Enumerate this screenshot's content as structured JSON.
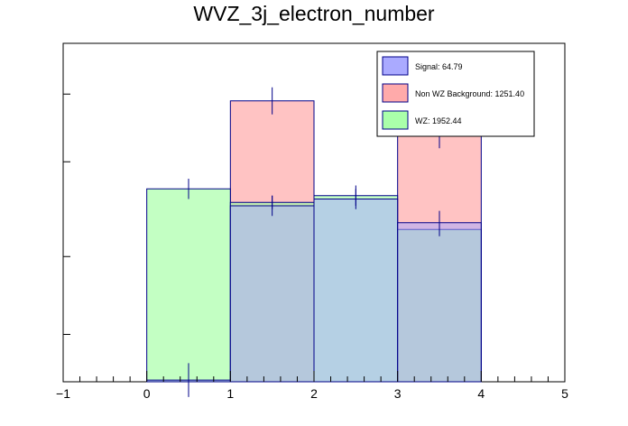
{
  "chart_data": {
    "type": "bar",
    "stacked_overlay": true,
    "title": "WVZ_3j_electron_number",
    "xlabel": "",
    "ylabel": "",
    "xlim": [
      -1,
      5
    ],
    "ylim": [
      0,
      1.0
    ],
    "x_ticks": [
      -1,
      0,
      1,
      2,
      3,
      4,
      5
    ],
    "bins": [
      [
        0,
        1
      ],
      [
        1,
        2
      ],
      [
        2,
        3
      ],
      [
        3,
        4
      ]
    ],
    "series": [
      {
        "name": "Signal",
        "legend_label": "Signal: 64.79",
        "color": "#aaaaff",
        "values": [
          0.005,
          0.52,
          0.54,
          0.47
        ],
        "errors": [
          0.05,
          0.03,
          0.03,
          0.035
        ]
      },
      {
        "name": "Non WZ Background",
        "legend_label": "Non WZ Background: 1251.40",
        "color": "#ffaaaa",
        "values": [
          0.0,
          0.83,
          0.0,
          0.74
        ],
        "errors": [
          0.0,
          0.04,
          0.0,
          0.05
        ]
      },
      {
        "name": "WZ",
        "legend_label": "WZ: 1952.44",
        "color": "#aaffaa",
        "values": [
          0.57,
          0.53,
          0.55,
          0.45
        ],
        "errors": [
          0.03,
          0.02,
          0.03,
          0.02
        ]
      }
    ],
    "overlap_color": "#6cc4a6",
    "overlap_three_color": "#80a06a",
    "edge_color": "#000088",
    "legend_position": "top-right"
  }
}
